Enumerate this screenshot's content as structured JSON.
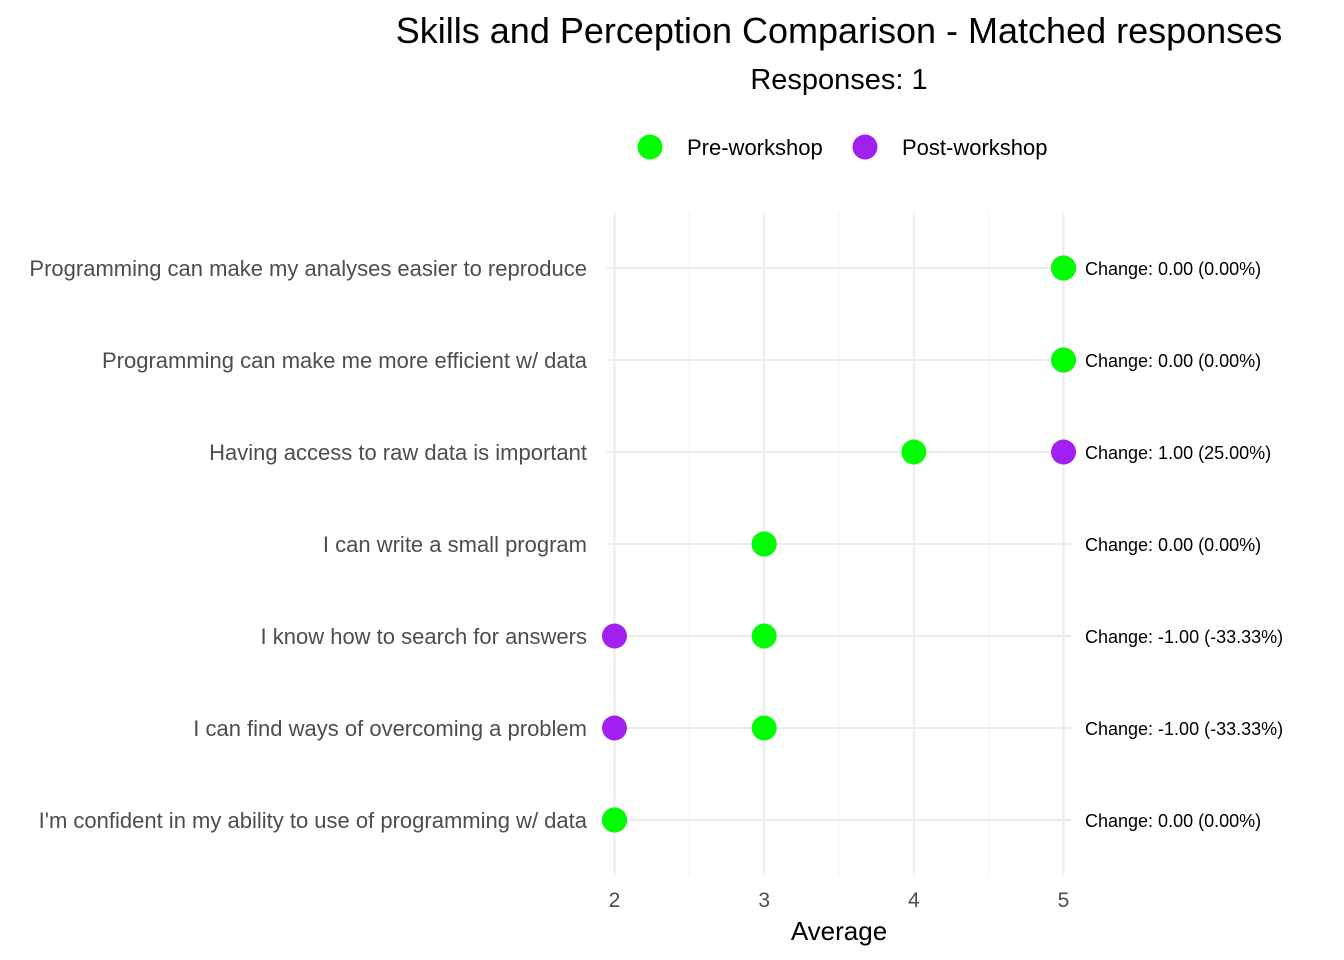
{
  "chart_data": {
    "type": "scatter",
    "title": "Skills and Perception Comparison - Matched responses",
    "subtitle": "Responses: 1",
    "xlabel": "Average",
    "ylabel": "",
    "xlim": [
      1.95,
      5.05
    ],
    "xticks": [
      2,
      3,
      4,
      5
    ],
    "grid": true,
    "legend_position": "top",
    "categories": [
      "Programming can make my analyses easier to reproduce",
      "Programming can make me more efficient w/ data",
      "Having access to raw data is important",
      "I can write a small program",
      "I know how to search for answers",
      "I can find ways of overcoming a problem",
      "I'm confident in my ability to use of programming w/ data"
    ],
    "series": [
      {
        "name": "Pre-workshop",
        "color": "#00ff00",
        "values": [
          5,
          5,
          4,
          3,
          3,
          3,
          2
        ]
      },
      {
        "name": "Post-workshop",
        "color": "#a020f0",
        "values": [
          5,
          5,
          5,
          3,
          2,
          2,
          2
        ]
      }
    ],
    "annotations": [
      "Change: 0.00 (0.00%)",
      "Change: 0.00 (0.00%)",
      "Change: 1.00 (25.00%)",
      "Change: 0.00 (0.00%)",
      "Change: -1.00 (-33.33%)",
      "Change: -1.00 (-33.33%)",
      "Change: 0.00 (0.00%)"
    ]
  }
}
